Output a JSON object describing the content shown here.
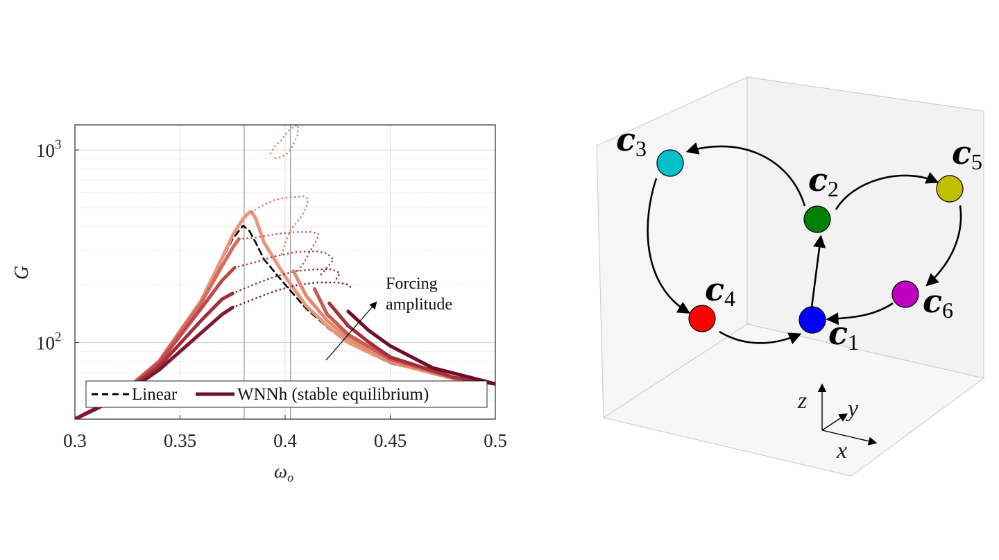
{
  "chart_data": [
    {
      "type": "line",
      "xlabel": "ω",
      "xlabel_sub": "o",
      "ylabel": "G",
      "xlim": [
        0.3,
        0.5
      ],
      "ylim": [
        40,
        1350
      ],
      "yscale": "log",
      "xticks": [
        "0.3",
        "0.35",
        "0.4",
        "0.45",
        "0.5"
      ],
      "yticks": [
        {
          "value": 100,
          "base": "10",
          "exp": "2"
        },
        {
          "value": 1000,
          "base": "10",
          "exp": "3"
        }
      ],
      "vlines": [
        0.3805,
        0.4025
      ],
      "grid": true,
      "legend_position": "bottom",
      "legend": [
        {
          "label": "Linear",
          "style": "dashed",
          "color": "#000000"
        },
        {
          "label": "WNNh (stable equilibrium)",
          "style": "solid",
          "color": "#6b0f25"
        }
      ],
      "annotation": {
        "line1": "Forcing",
        "line2": "amplitude"
      },
      "series": [
        {
          "style": "dashed",
          "color": "#000000",
          "x": [
            0.3,
            0.32,
            0.34,
            0.36,
            0.37,
            0.375,
            0.38,
            0.383,
            0.386,
            0.39,
            0.4,
            0.41,
            0.42,
            0.43,
            0.45,
            0.48,
            0.5
          ],
          "y": [
            40,
            52,
            80,
            165,
            270,
            345,
            405,
            380,
            330,
            270,
            200,
            150,
            120,
            99,
            78,
            65,
            61
          ]
        },
        {
          "style": "solid",
          "color": "#e9967a",
          "x": [
            0.3,
            0.32,
            0.34,
            0.36,
            0.37,
            0.375,
            0.38,
            0.383,
            0.384,
            0.386,
            0.39,
            0.4,
            0.41,
            0.42,
            0.43,
            0.45,
            0.48,
            0.5
          ],
          "y": [
            40,
            52,
            80,
            165,
            275,
            360,
            440,
            475,
            478,
            440,
            330,
            220,
            155,
            122,
            100,
            79,
            65,
            61
          ]
        },
        {
          "style": "dotted",
          "color": "#d67a66",
          "x": [
            0.384,
            0.39,
            0.395,
            0.4,
            0.405,
            0.409,
            0.411,
            0.41,
            0.407,
            0.403,
            0.4,
            0.398
          ],
          "y": [
            478,
            520,
            550,
            565,
            570,
            575,
            555,
            500,
            440,
            390,
            330,
            280
          ]
        },
        {
          "style": "dotted",
          "color": "#d8857a",
          "x": [
            0.393,
            0.395,
            0.398,
            0.4,
            0.402,
            0.404,
            0.406,
            0.406,
            0.404,
            0.402,
            0.4,
            0.398,
            0.396,
            0.394
          ],
          "y": [
            960,
            1040,
            1120,
            1200,
            1270,
            1320,
            1350,
            1200,
            1080,
            980,
            940,
            920,
            910,
            910
          ]
        },
        {
          "style": "solid",
          "color": "#d46a5e",
          "x": [
            0.3,
            0.32,
            0.34,
            0.36,
            0.37,
            0.375,
            0.378
          ],
          "y": [
            40,
            52,
            80,
            160,
            250,
            310,
            345
          ]
        },
        {
          "style": "dotted",
          "color": "#b85a55",
          "x": [
            0.378,
            0.385,
            0.395,
            0.405,
            0.413,
            0.416,
            0.415,
            0.412,
            0.409,
            0.406
          ],
          "y": [
            345,
            350,
            365,
            375,
            375,
            365,
            340,
            300,
            260,
            235
          ]
        },
        {
          "style": "solid",
          "color": "#c04a4a",
          "x": [
            0.3,
            0.32,
            0.34,
            0.36,
            0.37,
            0.376
          ],
          "y": [
            40,
            52,
            78,
            150,
            210,
            245
          ]
        },
        {
          "style": "dotted",
          "color": "#a0404a",
          "x": [
            0.376,
            0.385,
            0.395,
            0.405,
            0.415,
            0.42,
            0.423,
            0.42,
            0.417
          ],
          "y": [
            245,
            260,
            280,
            295,
            298,
            290,
            270,
            245,
            225
          ]
        },
        {
          "style": "solid",
          "color": "#a22f3a",
          "x": [
            0.3,
            0.32,
            0.34,
            0.36,
            0.37,
            0.375
          ],
          "y": [
            40,
            52,
            75,
            130,
            168,
            180
          ]
        },
        {
          "style": "dotted",
          "color": "#8c2a3a",
          "x": [
            0.375,
            0.385,
            0.395,
            0.405,
            0.415,
            0.422,
            0.426,
            0.424
          ],
          "y": [
            180,
            200,
            220,
            235,
            240,
            240,
            230,
            210
          ]
        },
        {
          "style": "solid",
          "color": "#7d1830",
          "x": [
            0.3,
            0.32,
            0.34,
            0.36,
            0.37,
            0.375
          ],
          "y": [
            40,
            51,
            72,
            112,
            140,
            152
          ]
        },
        {
          "style": "dotted",
          "color": "#6b1028",
          "x": [
            0.375,
            0.385,
            0.395,
            0.405,
            0.415,
            0.425,
            0.43,
            0.432
          ],
          "y": [
            152,
            168,
            185,
            198,
            205,
            205,
            200,
            190
          ]
        },
        {
          "style": "solid",
          "color": "#e08a70",
          "x": [
            0.404,
            0.41,
            0.42,
            0.43,
            0.45,
            0.48,
            0.5
          ],
          "y": [
            235,
            175,
            130,
            105,
            80,
            65,
            61
          ]
        },
        {
          "style": "solid",
          "color": "#c95b52",
          "x": [
            0.414,
            0.42,
            0.43,
            0.45,
            0.48,
            0.5
          ],
          "y": [
            190,
            140,
            110,
            82,
            66,
            61
          ]
        },
        {
          "style": "solid",
          "color": "#a22f3a",
          "x": [
            0.421,
            0.43,
            0.44,
            0.45,
            0.48,
            0.5
          ],
          "y": [
            160,
            122,
            100,
            84,
            66,
            61
          ]
        },
        {
          "style": "solid",
          "color": "#6b1028",
          "x": [
            0.43,
            0.44,
            0.45,
            0.47,
            0.5
          ],
          "y": [
            145,
            115,
            96,
            74,
            61
          ]
        }
      ]
    },
    {
      "type": "diagram",
      "nodes": [
        {
          "id": "c1",
          "base": "c",
          "sub": "1",
          "color": "#0000ff"
        },
        {
          "id": "c2",
          "base": "c",
          "sub": "2",
          "color": "#008000"
        },
        {
          "id": "c3",
          "base": "c",
          "sub": "3",
          "color": "#00c0c8"
        },
        {
          "id": "c4",
          "base": "c",
          "sub": "4",
          "color": "#ff0000"
        },
        {
          "id": "c5",
          "base": "c",
          "sub": "5",
          "color": "#c0c000"
        },
        {
          "id": "c6",
          "base": "c",
          "sub": "6",
          "color": "#c000c0"
        }
      ],
      "edges": [
        {
          "from": "c1",
          "to": "c2"
        },
        {
          "from": "c2",
          "to": "c3"
        },
        {
          "from": "c3",
          "to": "c4"
        },
        {
          "from": "c4",
          "to": "c1"
        },
        {
          "from": "c2",
          "to": "c5"
        },
        {
          "from": "c5",
          "to": "c6"
        },
        {
          "from": "c6",
          "to": "c1"
        }
      ],
      "axes_labels": {
        "z": "z",
        "y": "y",
        "x": "x"
      }
    }
  ]
}
